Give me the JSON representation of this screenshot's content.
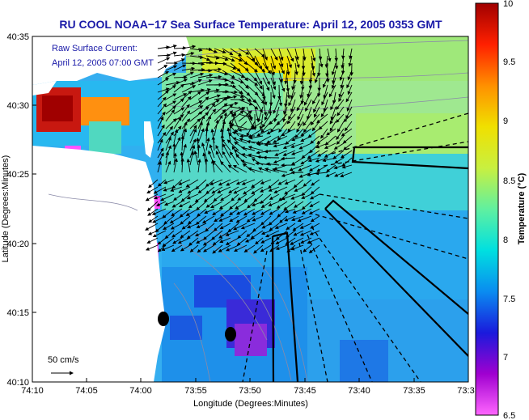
{
  "title": "RU COOL  NOAA−17  Sea Surface Temperature:  April 12, 2005 0353 GMT",
  "overlay": {
    "line1": "Raw Surface Current:",
    "line2": "April 12, 2005 07:00 GMT"
  },
  "scale_label": "50 cm/s",
  "axes": {
    "xlabel": "Longitude (Degrees:Minutes)",
    "ylabel": "Latitude (Degrees:Minutes)",
    "x_ticks": [
      "74:10",
      "74:05",
      "74:00",
      "73:55",
      "73:50",
      "73:45",
      "73:40",
      "73:35",
      "73:3"
    ],
    "y_ticks": [
      "40:35",
      "40:30",
      "40:25",
      "40:20",
      "40:15",
      "40:10"
    ]
  },
  "colorbar": {
    "label": "Temperature (°C)",
    "ticks": [
      "10",
      "9.5",
      "9",
      "8.5",
      "8",
      "7.5",
      "7",
      "6.5"
    ],
    "min": 6.5,
    "max": 10,
    "stops": [
      "#ff66ff",
      "#a000d0",
      "#1a1adc",
      "#0a8cf0",
      "#00e0e0",
      "#60f0a0",
      "#c8f040",
      "#f0e000",
      "#ff9000",
      "#ff2000",
      "#a00000"
    ]
  },
  "colors": {
    "land": "#ffffff",
    "title": "#1a1aa8",
    "ocean_base": "#35aef0"
  }
}
